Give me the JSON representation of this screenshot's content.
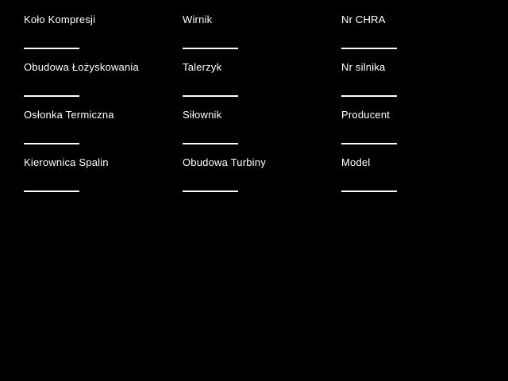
{
  "colors": {
    "background": "#000000",
    "text": "#ffffff",
    "field_underline": "#ffffff"
  },
  "form": {
    "columns": [
      {
        "fields": [
          {
            "label": "Koło Kompresji",
            "value": ""
          },
          {
            "label": "Obudowa Łożyskowania",
            "value": ""
          },
          {
            "label": "Osłonka Termiczna",
            "value": ""
          },
          {
            "label": "Kierownica Spalin",
            "value": ""
          }
        ]
      },
      {
        "fields": [
          {
            "label": "Wirnik",
            "value": ""
          },
          {
            "label": "Talerzyk",
            "value": ""
          },
          {
            "label": "Siłownik",
            "value": ""
          },
          {
            "label": "Obudowa Turbiny",
            "value": ""
          }
        ]
      },
      {
        "fields": [
          {
            "label": "Nr CHRA",
            "value": ""
          },
          {
            "label": "Nr silnika",
            "value": ""
          },
          {
            "label": "Producent",
            "value": ""
          },
          {
            "label": "Model",
            "value": ""
          }
        ]
      }
    ]
  }
}
